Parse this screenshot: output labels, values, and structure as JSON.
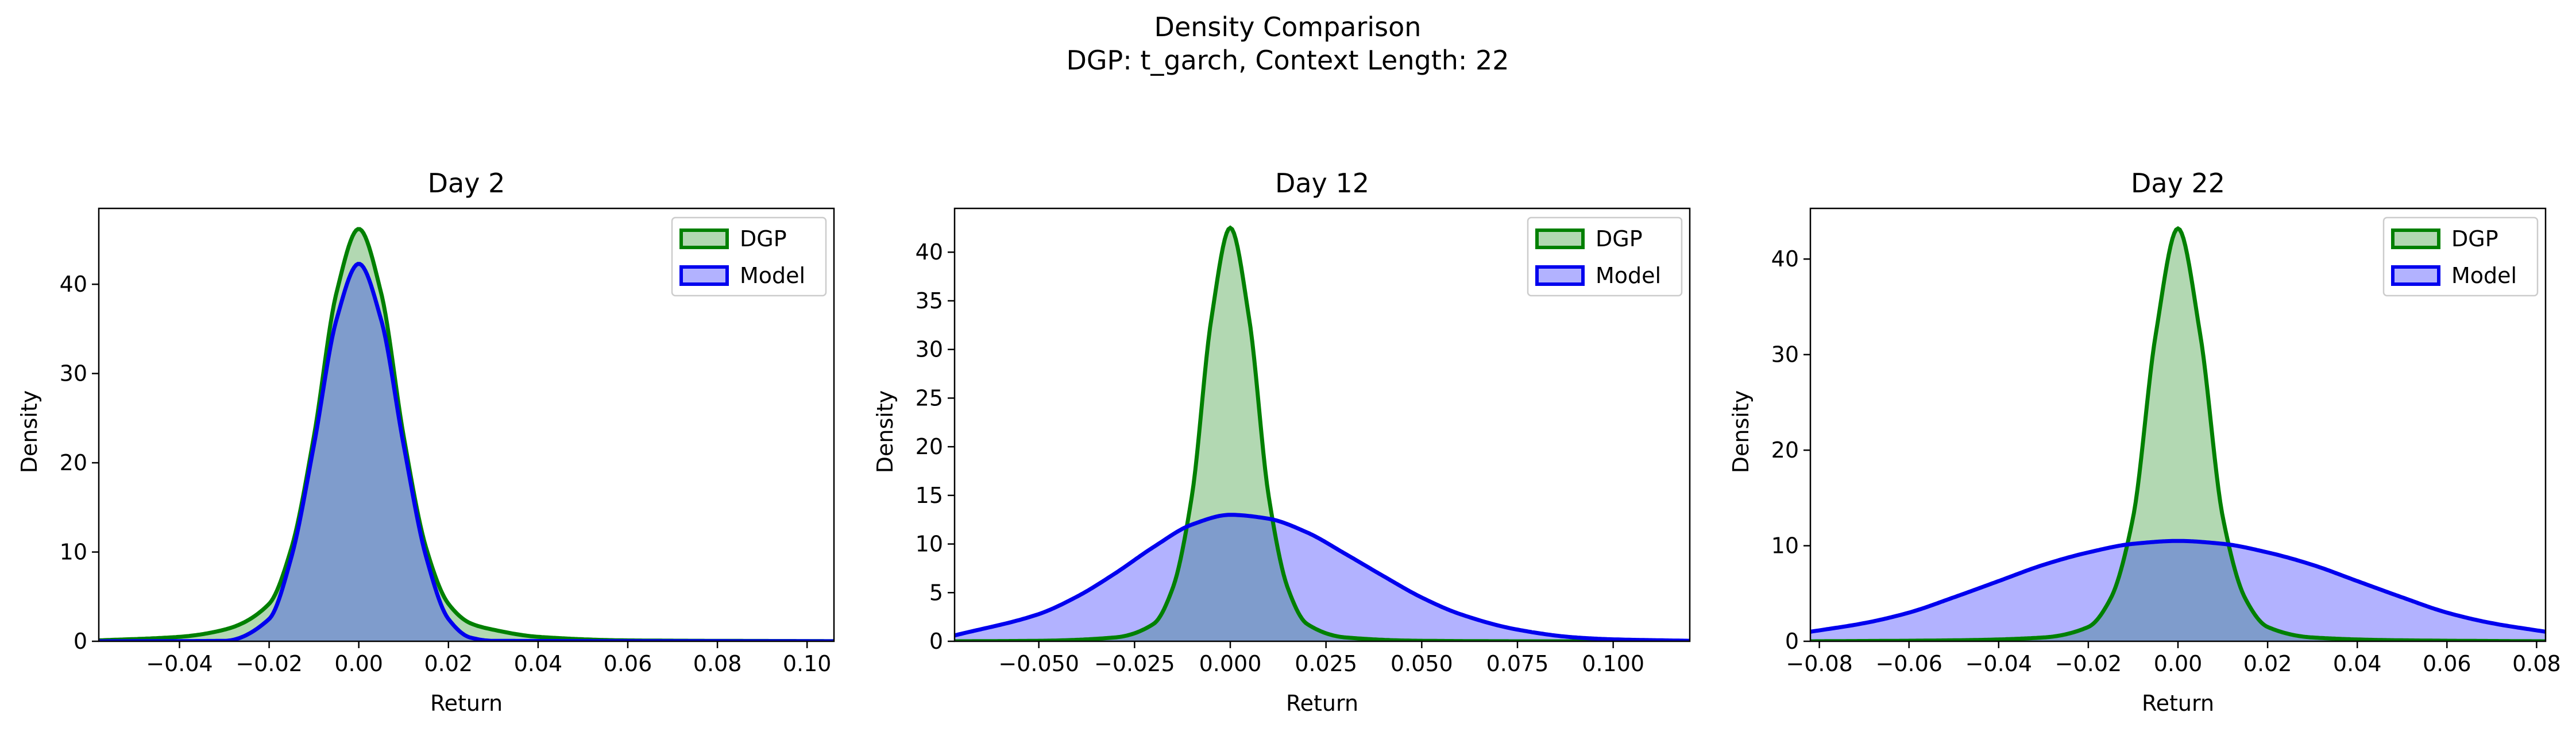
{
  "suptitle": {
    "line1": "Density Comparison",
    "line2": "DGP: t_garch, Context Length: 22"
  },
  "colors": {
    "dgp_line": "#008000",
    "dgp_fill": "#b2d8b2",
    "model_line": "#0000ee",
    "model_fill": "#b2b2ff",
    "overlap_fill": "#7f9ccc"
  },
  "chart_data": [
    {
      "type": "area",
      "title": "Day 2",
      "xlabel": "Return",
      "ylabel": "Density",
      "xlim": [
        -0.058,
        0.106
      ],
      "ylim": [
        0,
        48.5
      ],
      "xticks": [
        -0.04,
        -0.02,
        0.0,
        0.02,
        0.04,
        0.06,
        0.08,
        0.1
      ],
      "xticklabels": [
        "−0.04",
        "−0.02",
        "0.00",
        "0.02",
        "0.04",
        "0.06",
        "0.08",
        "0.10"
      ],
      "yticks": [
        0,
        10,
        20,
        30,
        40
      ],
      "yticklabels": [
        "0",
        "10",
        "20",
        "30",
        "40"
      ],
      "legend_position": "top-right",
      "legend": [
        "DGP",
        "Model"
      ],
      "series": [
        {
          "name": "DGP",
          "x": [
            -0.058,
            -0.04,
            -0.03,
            -0.02,
            -0.015,
            -0.01,
            -0.005,
            0.0,
            0.005,
            0.01,
            0.015,
            0.02,
            0.025,
            0.03,
            0.04,
            0.06,
            0.08,
            0.106
          ],
          "y": [
            0.1,
            0.5,
            1.3,
            4.2,
            10.5,
            23.0,
            39.0,
            46.2,
            39.0,
            23.0,
            10.5,
            4.2,
            2.0,
            1.3,
            0.5,
            0.1,
            0.05,
            0.02
          ]
        },
        {
          "name": "Model",
          "x": [
            -0.058,
            -0.03,
            -0.02,
            -0.015,
            -0.01,
            -0.005,
            0.0,
            0.005,
            0.01,
            0.015,
            0.02,
            0.025,
            0.03,
            0.106
          ],
          "y": [
            0.0,
            0.05,
            2.5,
            9.5,
            22.0,
            36.0,
            42.3,
            36.0,
            22.0,
            9.5,
            2.5,
            0.4,
            0.05,
            0.0
          ]
        }
      ]
    },
    {
      "type": "area",
      "title": "Day 12",
      "xlabel": "Return",
      "ylabel": "Density",
      "xlim": [
        -0.072,
        0.12
      ],
      "ylim": [
        0,
        44.5
      ],
      "xticks": [
        -0.05,
        -0.025,
        0.0,
        0.025,
        0.05,
        0.075,
        0.1
      ],
      "xticklabels": [
        "−0.050",
        "−0.025",
        "0.000",
        "0.025",
        "0.050",
        "0.075",
        "0.100"
      ],
      "yticks": [
        0,
        5,
        10,
        15,
        20,
        25,
        30,
        35,
        40
      ],
      "yticklabels": [
        "0",
        "5",
        "10",
        "15",
        "20",
        "25",
        "30",
        "35",
        "40"
      ],
      "legend_position": "top-right",
      "legend": [
        "DGP",
        "Model"
      ],
      "series": [
        {
          "name": "DGP",
          "x": [
            -0.072,
            -0.05,
            -0.03,
            -0.02,
            -0.015,
            -0.01,
            -0.005,
            0.0,
            0.005,
            0.01,
            0.015,
            0.02,
            0.03,
            0.05,
            0.08,
            0.12
          ],
          "y": [
            0.0,
            0.05,
            0.4,
            1.8,
            5.5,
            15.0,
            33.0,
            42.5,
            33.0,
            15.0,
            5.5,
            1.8,
            0.4,
            0.05,
            0.0,
            0.0
          ]
        },
        {
          "name": "Model",
          "x": [
            -0.072,
            -0.05,
            -0.04,
            -0.03,
            -0.02,
            -0.01,
            0.0,
            0.01,
            0.02,
            0.03,
            0.04,
            0.05,
            0.06,
            0.075,
            0.09,
            0.1,
            0.12
          ],
          "y": [
            0.6,
            2.8,
            4.6,
            7.0,
            9.7,
            12.0,
            13.0,
            12.6,
            11.2,
            9.0,
            6.7,
            4.5,
            2.8,
            1.2,
            0.4,
            0.2,
            0.05
          ]
        }
      ]
    },
    {
      "type": "area",
      "title": "Day 22",
      "xlabel": "Return",
      "ylabel": "Density",
      "xlim": [
        -0.082,
        0.082
      ],
      "ylim": [
        0,
        45.3
      ],
      "xticks": [
        -0.08,
        -0.06,
        -0.04,
        -0.02,
        0.0,
        0.02,
        0.04,
        0.06,
        0.08
      ],
      "xticklabels": [
        "−0.08",
        "−0.06",
        "−0.04",
        "−0.02",
        "0.00",
        "0.02",
        "0.04",
        "0.06",
        "0.08"
      ],
      "yticks": [
        0,
        10,
        20,
        30,
        40
      ],
      "yticklabels": [
        "0",
        "10",
        "20",
        "30",
        "40"
      ],
      "legend_position": "top-right",
      "legend": [
        "DGP",
        "Model"
      ],
      "series": [
        {
          "name": "DGP",
          "x": [
            -0.082,
            -0.05,
            -0.03,
            -0.02,
            -0.015,
            -0.01,
            -0.005,
            0.0,
            0.005,
            0.01,
            0.015,
            0.02,
            0.03,
            0.05,
            0.082
          ],
          "y": [
            0.0,
            0.1,
            0.4,
            1.5,
            4.5,
            13.0,
            32.0,
            43.2,
            32.0,
            13.0,
            4.5,
            1.5,
            0.4,
            0.1,
            0.0
          ]
        },
        {
          "name": "Model",
          "x": [
            -0.082,
            -0.07,
            -0.06,
            -0.05,
            -0.04,
            -0.03,
            -0.02,
            -0.01,
            0.0,
            0.01,
            0.02,
            0.03,
            0.04,
            0.05,
            0.06,
            0.07,
            0.082
          ],
          "y": [
            1.0,
            1.9,
            3.0,
            4.6,
            6.3,
            8.0,
            9.3,
            10.2,
            10.5,
            10.2,
            9.3,
            8.0,
            6.3,
            4.6,
            3.0,
            1.9,
            1.0
          ]
        }
      ]
    }
  ]
}
